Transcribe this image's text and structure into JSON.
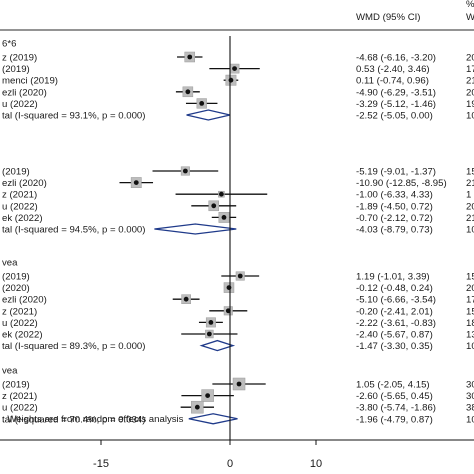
{
  "chart_data": {
    "type": "forest",
    "header": {
      "effect_label": "WMD (95% CI)",
      "weight_label_top": "%",
      "weight_label_bottom": "W"
    },
    "xlim": [
      -22,
      18
    ],
    "x_ticks": [
      {
        "value": -15,
        "label": "-15"
      },
      {
        "value": 0,
        "label": "0"
      },
      {
        "value": 10,
        "label": "10"
      }
    ],
    "groups": [
      {
        "label": "6*6",
        "studies": [
          {
            "label": "z (2019)",
            "est": -4.68,
            "lo": -6.16,
            "hi": -3.2,
            "ci_text": "-4.68 (-6.16, -3.20)",
            "weight_text": "20"
          },
          {
            "label": "(2019)",
            "est": 0.53,
            "lo": -2.4,
            "hi": 3.46,
            "ci_text": "0.53 (-2.40, 3.46)",
            "weight_text": "17"
          },
          {
            "label": "menci (2019)",
            "est": 0.11,
            "lo": -0.74,
            "hi": 0.96,
            "ci_text": "0.11 (-0.74, 0.96)",
            "weight_text": "21"
          },
          {
            "label": "ezli (2020)",
            "est": -4.9,
            "lo": -6.29,
            "hi": -3.51,
            "ci_text": "-4.90 (-6.29, -3.51)",
            "weight_text": "20"
          },
          {
            "label": "u (2022)",
            "est": -3.29,
            "lo": -5.12,
            "hi": -1.46,
            "ci_text": "-3.29 (-5.12, -1.46)",
            "weight_text": "19"
          }
        ],
        "overall": {
          "label": "tal  (I-squared = 93.1%, p = 0.000)",
          "est": -2.52,
          "lo": -5.05,
          "hi": 0.0,
          "ci_text": "-2.52 (-5.05, 0.00)",
          "weight_text": "10"
        }
      },
      {
        "label": "",
        "studies": [
          {
            "label": "(2019)",
            "est": -5.19,
            "lo": -9.01,
            "hi": -1.37,
            "ci_text": "-5.19 (-9.01, -1.37)",
            "weight_text": "15"
          },
          {
            "label": "ezli (2020)",
            "est": -10.9,
            "lo": -12.85,
            "hi": -8.95,
            "ci_text": "-10.90 (-12.85, -8.95)",
            "weight_text": "21"
          },
          {
            "label": "z (2021)",
            "est": -1.0,
            "lo": -6.33,
            "hi": 4.33,
            "ci_text": "-1.00 (-6.33, 4.33)",
            "weight_text": "1"
          },
          {
            "label": "u (2022)",
            "est": -1.89,
            "lo": -4.5,
            "hi": 0.72,
            "ci_text": "-1.89 (-4.50, 0.72)",
            "weight_text": "20"
          },
          {
            "label": "ek (2022)",
            "est": -0.7,
            "lo": -2.12,
            "hi": 0.72,
            "ci_text": "-0.70 (-2.12, 0.72)",
            "weight_text": "21"
          }
        ],
        "overall": {
          "label": "tal  (I-squared = 94.5%, p = 0.000)",
          "est": -4.03,
          "lo": -8.79,
          "hi": 0.73,
          "ci_text": "-4.03 (-8.79, 0.73)",
          "weight_text": "10"
        }
      },
      {
        "label": "vea",
        "studies": [
          {
            "label": "(2019)",
            "est": 1.19,
            "lo": -1.01,
            "hi": 3.39,
            "ci_text": "1.19 (-1.01, 3.39)",
            "weight_text": "15"
          },
          {
            "label": "(2020)",
            "est": -0.12,
            "lo": -0.48,
            "hi": 0.24,
            "ci_text": "-0.12 (-0.48, 0.24)",
            "weight_text": "20"
          },
          {
            "label": "ezli (2020)",
            "est": -5.1,
            "lo": -6.66,
            "hi": -3.54,
            "ci_text": "-5.10 (-6.66, -3.54)",
            "weight_text": "17"
          },
          {
            "label": "z (2021)",
            "est": -0.2,
            "lo": -2.41,
            "hi": 2.01,
            "ci_text": "-0.20 (-2.41, 2.01)",
            "weight_text": "15"
          },
          {
            "label": "u (2022)",
            "est": -2.22,
            "lo": -3.61,
            "hi": -0.83,
            "ci_text": "-2.22 (-3.61, -0.83)",
            "weight_text": "18"
          },
          {
            "label": "ek (2022)",
            "est": -2.4,
            "lo": -5.67,
            "hi": 0.87,
            "ci_text": "-2.40 (-5.67, 0.87)",
            "weight_text": "13"
          }
        ],
        "overall": {
          "label": "tal  (I-squared = 89.3%, p = 0.000)",
          "est": -1.47,
          "lo": -3.3,
          "hi": 0.35,
          "ci_text": "-1.47 (-3.30, 0.35)",
          "weight_text": "10"
        }
      },
      {
        "label": "vea",
        "studies": [
          {
            "label": "(2019)",
            "est": 1.05,
            "lo": -2.05,
            "hi": 4.15,
            "ci_text": "1.05 (-2.05, 4.15)",
            "weight_text": "30"
          },
          {
            "label": "z (2021)",
            "est": -2.6,
            "lo": -5.65,
            "hi": 0.45,
            "ci_text": "-2.60 (-5.65, 0.45)",
            "weight_text": "30"
          },
          {
            "label": "u (2022)",
            "est": -3.8,
            "lo": -5.74,
            "hi": -1.86,
            "ci_text": "-3.80 (-5.74, -1.86)",
            "weight_text": "38"
          }
        ],
        "overall": {
          "label": "tal  (I-squared = 70.4%, p = 0.034)",
          "est": -1.96,
          "lo": -4.79,
          "hi": 0.87,
          "ci_text": "-1.96 (-4.79, 0.87)",
          "weight_text": "10"
        }
      }
    ],
    "footnote": ": Weights are from random effects analysis"
  }
}
